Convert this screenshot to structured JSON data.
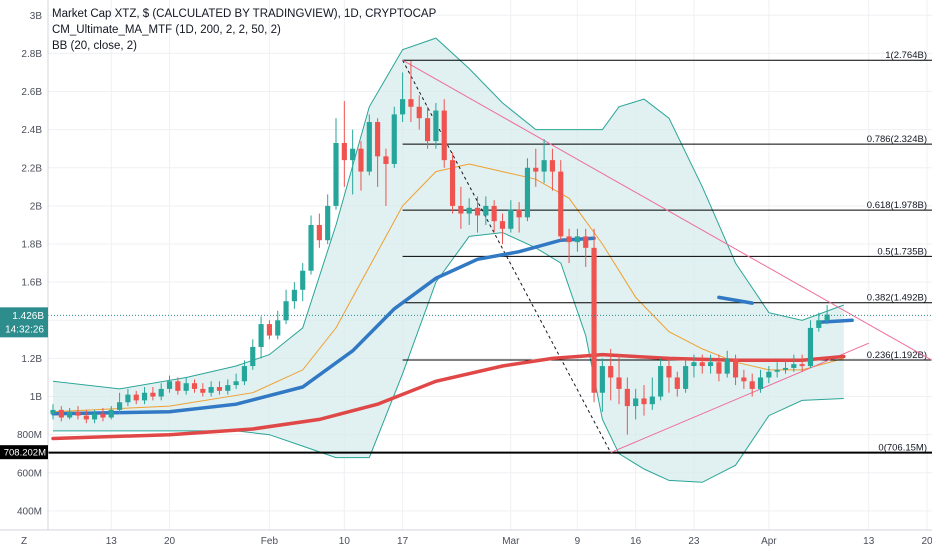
{
  "legend": {
    "title": "Market Cap XTZ, $ (CALCULATED BY TRADINGVIEW), 1D, CRYPTOCAP",
    "indicator1": "CM_Ultimate_MA_MTF (1D, 200, 2, 2, 50, 2)",
    "indicator2": "BB (20, close, 2)"
  },
  "colors": {
    "up": "#26a69a",
    "down": "#ef5350",
    "ma_fast": "#3179c4",
    "ma_slow": "#e04848",
    "bb_mid": "#f0a030",
    "bb_band": "#2aa598",
    "bb_fill": "#d7ebeb",
    "fib": "#000000",
    "trend": "#ee6b9c",
    "price_label": "#2d8c8c",
    "low_label": "#000000"
  },
  "axes": {
    "corner_label": "Z",
    "price_badge": "1.426B",
    "countdown_badge": "14:32:26",
    "low_badge": "708.202M"
  },
  "chart_data": {
    "type": "candlestick",
    "title": "Market Cap XTZ, $ (CALCULATED BY TRADINGVIEW), 1D, CRYPTOCAP",
    "y_unit": "USD",
    "y_ticks": [
      {
        "label": "400M",
        "value": 400000000
      },
      {
        "label": "600M",
        "value": 600000000
      },
      {
        "label": "800M",
        "value": 800000000
      },
      {
        "label": "1B",
        "value": 1000000000
      },
      {
        "label": "1.2B",
        "value": 1200000000
      },
      {
        "label": "1.4B",
        "value": 1400000000
      },
      {
        "label": "1.6B",
        "value": 1600000000
      },
      {
        "label": "1.8B",
        "value": 1800000000
      },
      {
        "label": "2B",
        "value": 2000000000
      },
      {
        "label": "2.2B",
        "value": 2200000000
      },
      {
        "label": "2.4B",
        "value": 2400000000
      },
      {
        "label": "2.6B",
        "value": 2600000000
      },
      {
        "label": "2.8B",
        "value": 2800000000
      },
      {
        "label": "3B",
        "value": 3000000000
      }
    ],
    "x_ticks": [
      {
        "label": "13",
        "day": 13
      },
      {
        "label": "20",
        "day": 20
      },
      {
        "label": "Feb",
        "day": 32
      },
      {
        "label": "10",
        "day": 41
      },
      {
        "label": "17",
        "day": 48
      },
      {
        "label": "Mar",
        "day": 61
      },
      {
        "label": "9",
        "day": 69
      },
      {
        "label": "16",
        "day": 76
      },
      {
        "label": "23",
        "day": 83
      },
      {
        "label": "Apr",
        "day": 92
      },
      {
        "label": "13",
        "day": 104
      },
      {
        "label": "20",
        "day": 111
      }
    ],
    "x_range_days": [
      5.4,
      111.6
    ],
    "y_range": [
      300000000,
      3080000000
    ],
    "start_day": 6,
    "candles": [
      [
        0.91,
        0.93,
        0.88,
        0.96
      ],
      [
        0.93,
        0.89,
        0.87,
        0.95
      ],
      [
        0.89,
        0.92,
        0.88,
        0.94
      ],
      [
        0.92,
        0.9,
        0.88,
        0.95
      ],
      [
        0.9,
        0.88,
        0.86,
        0.93
      ],
      [
        0.88,
        0.91,
        0.86,
        0.93
      ],
      [
        0.91,
        0.89,
        0.87,
        0.94
      ],
      [
        0.89,
        0.93,
        0.88,
        0.95
      ],
      [
        0.93,
        0.97,
        0.91,
        1.02
      ],
      [
        0.97,
        1.01,
        0.95,
        1.04
      ],
      [
        1.01,
        0.98,
        0.96,
        1.03
      ],
      [
        0.98,
        1.02,
        0.96,
        1.05
      ],
      [
        1.02,
        1.0,
        0.98,
        1.05
      ],
      [
        1.0,
        1.04,
        0.98,
        1.07
      ],
      [
        1.04,
        1.08,
        1.02,
        1.11
      ],
      [
        1.08,
        1.03,
        1.01,
        1.1
      ],
      [
        1.03,
        1.07,
        1.01,
        1.1
      ],
      [
        1.07,
        1.04,
        1.02,
        1.09
      ],
      [
        1.04,
        1.02,
        1.0,
        1.07
      ],
      [
        1.02,
        1.05,
        1.0,
        1.08
      ],
      [
        1.05,
        1.03,
        1.01,
        1.08
      ],
      [
        1.03,
        1.06,
        1.01,
        1.09
      ],
      [
        1.06,
        1.08,
        1.04,
        1.12
      ],
      [
        1.08,
        1.16,
        1.06,
        1.19
      ],
      [
        1.16,
        1.26,
        1.14,
        1.3
      ],
      [
        1.26,
        1.38,
        1.2,
        1.42
      ],
      [
        1.38,
        1.32,
        1.3,
        1.4
      ],
      [
        1.32,
        1.4,
        1.3,
        1.45
      ],
      [
        1.4,
        1.5,
        1.38,
        1.56
      ],
      [
        1.5,
        1.56,
        1.46,
        1.6
      ],
      [
        1.56,
        1.66,
        1.5,
        1.7
      ],
      [
        1.66,
        1.9,
        1.64,
        1.95
      ],
      [
        1.9,
        1.82,
        1.78,
        1.96
      ],
      [
        1.82,
        2.0,
        1.8,
        2.06
      ],
      [
        2.0,
        2.33,
        1.98,
        2.46
      ],
      [
        2.33,
        2.24,
        2.1,
        2.55
      ],
      [
        2.24,
        2.3,
        2.06,
        2.4
      ],
      [
        2.3,
        2.18,
        2.08,
        2.34
      ],
      [
        2.18,
        2.44,
        2.16,
        2.48
      ],
      [
        2.44,
        2.26,
        2.1,
        2.46
      ],
      [
        2.26,
        2.22,
        2.0,
        2.3
      ],
      [
        2.22,
        2.48,
        2.2,
        2.52
      ],
      [
        2.48,
        2.56,
        2.44,
        2.7
      ],
      [
        2.56,
        2.52,
        2.44,
        2.76
      ],
      [
        2.52,
        2.46,
        2.4,
        2.58
      ],
      [
        2.46,
        2.34,
        2.3,
        2.52
      ],
      [
        2.34,
        2.5,
        2.3,
        2.54
      ],
      [
        2.5,
        2.24,
        2.2,
        2.56
      ],
      [
        2.24,
        2.0,
        1.96,
        2.28
      ],
      [
        2.0,
        1.96,
        1.88,
        2.1
      ],
      [
        1.96,
        1.99,
        1.9,
        2.04
      ],
      [
        1.99,
        1.95,
        1.86,
        2.05
      ],
      [
        1.95,
        2.0,
        1.9,
        2.05
      ],
      [
        2.0,
        1.92,
        1.86,
        2.03
      ],
      [
        1.92,
        1.88,
        1.8,
        1.96
      ],
      [
        1.88,
        1.98,
        1.86,
        2.03
      ],
      [
        1.98,
        1.94,
        1.86,
        2.02
      ],
      [
        1.94,
        2.2,
        1.92,
        2.25
      ],
      [
        2.2,
        2.18,
        2.1,
        2.3
      ],
      [
        2.18,
        2.24,
        2.12,
        2.35
      ],
      [
        2.24,
        2.18,
        2.08,
        2.3
      ],
      [
        2.18,
        1.84,
        1.82,
        2.24
      ],
      [
        1.84,
        1.81,
        1.7,
        1.88
      ],
      [
        1.81,
        1.84,
        1.76,
        1.88
      ],
      [
        1.84,
        1.78,
        1.68,
        1.88
      ],
      [
        1.78,
        1.02,
        0.97,
        1.88
      ],
      [
        1.02,
        1.16,
        0.92,
        1.2
      ],
      [
        1.16,
        1.1,
        0.98,
        1.25
      ],
      [
        1.1,
        1.04,
        0.96,
        1.22
      ],
      [
        1.04,
        0.95,
        0.8,
        1.1
      ],
      [
        0.95,
        0.99,
        0.88,
        1.04
      ],
      [
        0.99,
        0.96,
        0.9,
        1.06
      ],
      [
        0.96,
        1.0,
        0.93,
        1.1
      ],
      [
        1.0,
        1.16,
        0.98,
        1.2
      ],
      [
        1.16,
        1.1,
        1.02,
        1.2
      ],
      [
        1.1,
        1.04,
        1.0,
        1.13
      ],
      [
        1.04,
        1.16,
        1.02,
        1.2
      ],
      [
        1.16,
        1.18,
        1.1,
        1.22
      ],
      [
        1.18,
        1.16,
        1.12,
        1.22
      ],
      [
        1.16,
        1.18,
        1.12,
        1.22
      ],
      [
        1.18,
        1.12,
        1.08,
        1.22
      ],
      [
        1.12,
        1.2,
        1.1,
        1.24
      ],
      [
        1.2,
        1.1,
        1.06,
        1.22
      ],
      [
        1.1,
        1.08,
        1.04,
        1.14
      ],
      [
        1.08,
        1.04,
        1.0,
        1.12
      ],
      [
        1.04,
        1.1,
        1.02,
        1.14
      ],
      [
        1.1,
        1.13,
        1.07,
        1.16
      ],
      [
        1.13,
        1.14,
        1.1,
        1.18
      ],
      [
        1.14,
        1.15,
        1.12,
        1.2
      ],
      [
        1.15,
        1.17,
        1.13,
        1.22
      ],
      [
        1.17,
        1.16,
        1.13,
        1.22
      ],
      [
        1.16,
        1.36,
        1.15,
        1.4
      ],
      [
        1.36,
        1.4,
        1.34,
        1.44
      ],
      [
        1.4,
        1.43,
        1.38,
        1.48
      ]
    ],
    "candles_format": "open, close, low, high in billions USD per daily bar",
    "ma_fast": {
      "name": "MA 50",
      "points": [
        [
          6,
          0.91
        ],
        [
          20,
          0.92
        ],
        [
          28,
          0.96
        ],
        [
          36,
          1.05
        ],
        [
          42,
          1.24
        ],
        [
          47,
          1.46
        ],
        [
          52,
          1.62
        ],
        [
          57,
          1.72
        ],
        [
          62,
          1.76
        ],
        [
          67,
          1.82
        ],
        [
          71,
          1.83
        ]
      ],
      "segment2": [
        [
          86,
          1.52
        ],
        [
          90,
          1.49
        ]
      ],
      "segment3": [
        [
          98,
          1.39
        ],
        [
          102,
          1.4
        ]
      ]
    },
    "ma_slow": {
      "name": "MA 200",
      "points": [
        [
          6,
          0.78
        ],
        [
          20,
          0.8
        ],
        [
          30,
          0.83
        ],
        [
          38,
          0.88
        ],
        [
          45,
          0.96
        ],
        [
          52,
          1.08
        ],
        [
          60,
          1.16
        ],
        [
          66,
          1.2
        ],
        [
          72,
          1.22
        ],
        [
          80,
          1.2
        ],
        [
          88,
          1.19
        ],
        [
          96,
          1.19
        ],
        [
          101,
          1.21
        ]
      ]
    },
    "bb_mid": [
      [
        6,
        0.92
      ],
      [
        20,
        0.95
      ],
      [
        30,
        1.02
      ],
      [
        36,
        1.14
      ],
      [
        40,
        1.36
      ],
      [
        44,
        1.68
      ],
      [
        48,
        2.0
      ],
      [
        52,
        2.18
      ],
      [
        56,
        2.22
      ],
      [
        60,
        2.18
      ],
      [
        64,
        2.14
      ],
      [
        68,
        2.04
      ],
      [
        72,
        1.8
      ],
      [
        76,
        1.52
      ],
      [
        80,
        1.34
      ],
      [
        84,
        1.25
      ],
      [
        88,
        1.18
      ],
      [
        92,
        1.14
      ],
      [
        96,
        1.14
      ],
      [
        101,
        1.2
      ]
    ],
    "bb_upper": [
      [
        6,
        1.08
      ],
      [
        14,
        1.04
      ],
      [
        22,
        1.1
      ],
      [
        28,
        1.16
      ],
      [
        32,
        1.22
      ],
      [
        36,
        1.36
      ],
      [
        40,
        1.9
      ],
      [
        44,
        2.52
      ],
      [
        48,
        2.82
      ],
      [
        52,
        2.88
      ],
      [
        56,
        2.72
      ],
      [
        60,
        2.54
      ],
      [
        64,
        2.4
      ],
      [
        67,
        2.4
      ],
      [
        70,
        2.4
      ],
      [
        72,
        2.4
      ],
      [
        74,
        2.52
      ],
      [
        77,
        2.56
      ],
      [
        80,
        2.46
      ],
      [
        84,
        2.1
      ],
      [
        88,
        1.7
      ],
      [
        92,
        1.44
      ],
      [
        96,
        1.4
      ],
      [
        101,
        1.48
      ]
    ],
    "bb_lower": [
      [
        6,
        0.82
      ],
      [
        14,
        0.82
      ],
      [
        22,
        0.82
      ],
      [
        28,
        0.82
      ],
      [
        32,
        0.8
      ],
      [
        36,
        0.74
      ],
      [
        40,
        0.68
      ],
      [
        44,
        0.68
      ],
      [
        48,
        1.12
      ],
      [
        52,
        1.6
      ],
      [
        56,
        1.84
      ],
      [
        60,
        1.86
      ],
      [
        64,
        1.78
      ],
      [
        67,
        1.7
      ],
      [
        70,
        1.32
      ],
      [
        72,
        0.88
      ],
      [
        74,
        0.7
      ],
      [
        77,
        0.62
      ],
      [
        80,
        0.56
      ],
      [
        84,
        0.55
      ],
      [
        88,
        0.64
      ],
      [
        92,
        0.9
      ],
      [
        96,
        0.98
      ],
      [
        101,
        0.99
      ]
    ],
    "fib_levels": [
      {
        "label": "1(2.764B)",
        "value": 2.764
      },
      {
        "label": "0.786(2.324B)",
        "value": 2.324
      },
      {
        "label": "0.618(1.978B)",
        "value": 1.978
      },
      {
        "label": "0.5(1.735B)",
        "value": 1.735
      },
      {
        "label": "0.382(1.492B)",
        "value": 1.492
      },
      {
        "label": "0.236(1.192B)",
        "value": 1.192
      },
      {
        "label": "0(706.15M)",
        "value": 0.70615
      }
    ],
    "fib_start_day": 48,
    "fib_anchor_high": [
      48,
      2.764
    ],
    "fib_anchor_low": [
      73,
      0.70615
    ],
    "trendline_upper": [
      [
        48,
        2.764
      ],
      [
        112,
        1.18
      ]
    ],
    "trendline_lower": [
      [
        73,
        0.70615
      ],
      [
        104,
        1.28
      ]
    ],
    "last_price": 1.426,
    "low_price": 0.708202
  }
}
